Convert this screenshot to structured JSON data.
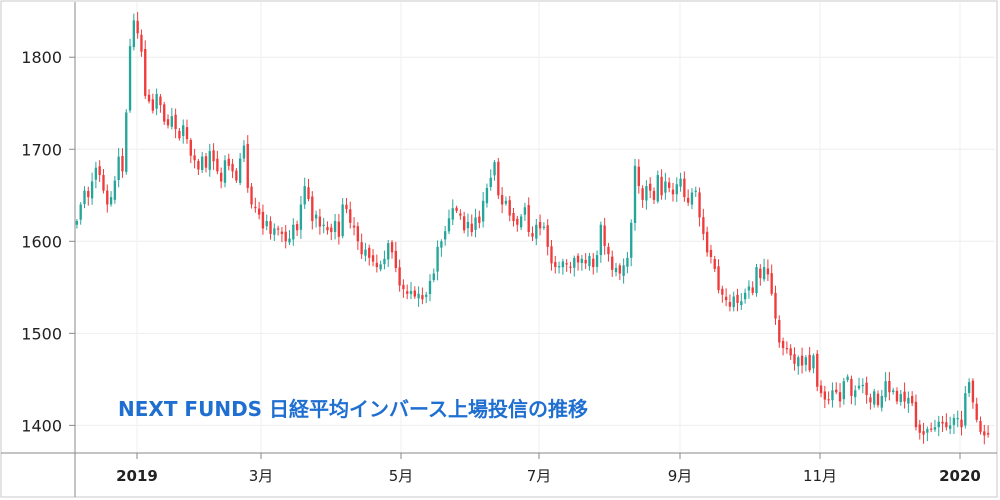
{
  "chart_data": {
    "type": "candlestick",
    "title": "NEXT FUNDS 日経平均インバース上場投信の推移",
    "ylim": [
      1370,
      1860
    ],
    "y_ticks": [
      1400,
      1500,
      1600,
      1700,
      1800
    ],
    "x_tick_labels": [
      "2019",
      "3月",
      "5月",
      "7月",
      "9月",
      "11月",
      "2020"
    ],
    "grid": true,
    "colors": {
      "up": "#26a69a",
      "down": "#ef3b3b",
      "title": "#1f6fd1"
    },
    "close": [
      1622,
      1640,
      1655,
      1648,
      1665,
      1680,
      1672,
      1655,
      1640,
      1648,
      1666,
      1692,
      1676,
      1740,
      1812,
      1840,
      1826,
      1806,
      1758,
      1752,
      1742,
      1760,
      1748,
      1730,
      1726,
      1736,
      1722,
      1712,
      1726,
      1711,
      1693,
      1688,
      1678,
      1692,
      1680,
      1698,
      1687,
      1676,
      1665,
      1688,
      1682,
      1676,
      1666,
      1690,
      1704,
      1658,
      1640,
      1636,
      1629,
      1614,
      1622,
      1608,
      1614,
      1613,
      1608,
      1600,
      1603,
      1618,
      1612,
      1640,
      1660,
      1646,
      1622,
      1629,
      1616,
      1618,
      1612,
      1610,
      1622,
      1605,
      1640,
      1635,
      1620,
      1615,
      1600,
      1586,
      1591,
      1582,
      1578,
      1572,
      1575,
      1581,
      1598,
      1588,
      1571,
      1552,
      1548,
      1543,
      1546,
      1540,
      1543,
      1537,
      1542,
      1557,
      1565,
      1594,
      1600,
      1611,
      1625,
      1636,
      1633,
      1628,
      1612,
      1621,
      1610,
      1626,
      1620,
      1644,
      1658,
      1669,
      1686,
      1650,
      1640,
      1644,
      1628,
      1622,
      1618,
      1627,
      1637,
      1610,
      1605,
      1618,
      1614,
      1616,
      1594,
      1576,
      1572,
      1573,
      1578,
      1575,
      1572,
      1582,
      1577,
      1581,
      1576,
      1584,
      1572,
      1585,
      1618,
      1595,
      1586,
      1569,
      1571,
      1565,
      1574,
      1582,
      1620,
      1682,
      1660,
      1645,
      1660,
      1655,
      1645,
      1672,
      1650,
      1665,
      1658,
      1651,
      1662,
      1668,
      1648,
      1642,
      1653,
      1655,
      1626,
      1608,
      1588,
      1583,
      1570,
      1547,
      1542,
      1536,
      1529,
      1540,
      1533,
      1535,
      1544,
      1551,
      1544,
      1572,
      1560,
      1572,
      1564,
      1543,
      1516,
      1490,
      1484,
      1483,
      1476,
      1467,
      1474,
      1465,
      1474,
      1460,
      1476,
      1442,
      1435,
      1428,
      1428,
      1438,
      1436,
      1426,
      1448,
      1453,
      1432,
      1438,
      1443,
      1444,
      1433,
      1425,
      1437,
      1422,
      1432,
      1448,
      1436,
      1438,
      1426,
      1434,
      1426,
      1430,
      1424,
      1398,
      1392,
      1390,
      1396,
      1396,
      1398,
      1404,
      1402,
      1398,
      1400,
      1408,
      1408,
      1398,
      1435,
      1447,
      1425,
      1406,
      1393,
      1389,
      1390
    ]
  }
}
